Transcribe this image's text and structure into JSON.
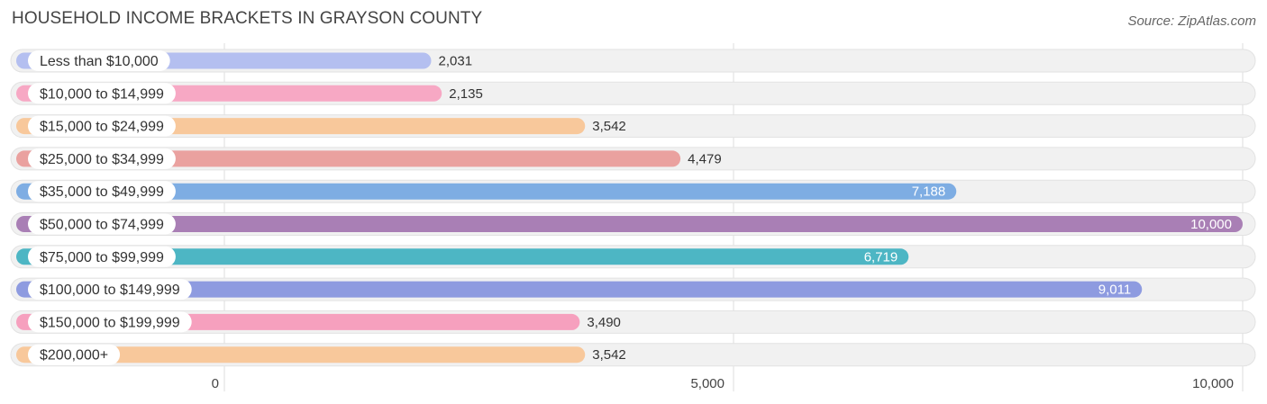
{
  "header": {
    "title": "HOUSEHOLD INCOME BRACKETS IN GRAYSON COUNTY",
    "source": "Source: ZipAtlas.com"
  },
  "chart_data": {
    "type": "bar",
    "orientation": "horizontal",
    "title": "HOUSEHOLD INCOME BRACKETS IN GRAYSON COUNTY",
    "xlim": [
      0,
      10000
    ],
    "ticks": [
      0,
      5000,
      10000
    ],
    "tick_labels": [
      "0",
      "5,000",
      "10,000"
    ],
    "grid": true,
    "categories": [
      "Less than $10,000",
      "$10,000 to $14,999",
      "$15,000 to $24,999",
      "$25,000 to $34,999",
      "$35,000 to $49,999",
      "$50,000 to $74,999",
      "$75,000 to $99,999",
      "$100,000 to $149,999",
      "$150,000 to $199,999",
      "$200,000+"
    ],
    "values": [
      2031,
      2135,
      3542,
      4479,
      7188,
      10000,
      6719,
      9011,
      3490,
      3542
    ],
    "value_labels": [
      "2,031",
      "2,135",
      "3,542",
      "4,479",
      "7,188",
      "10,000",
      "6,719",
      "9,011",
      "3,490",
      "3,542"
    ],
    "colors": [
      "#b4bff0",
      "#f7a8c4",
      "#f8c89b",
      "#eaa19f",
      "#7eade3",
      "#a97fb5",
      "#4db6c4",
      "#8e9be0",
      "#f6a0be",
      "#f8c89b"
    ]
  }
}
